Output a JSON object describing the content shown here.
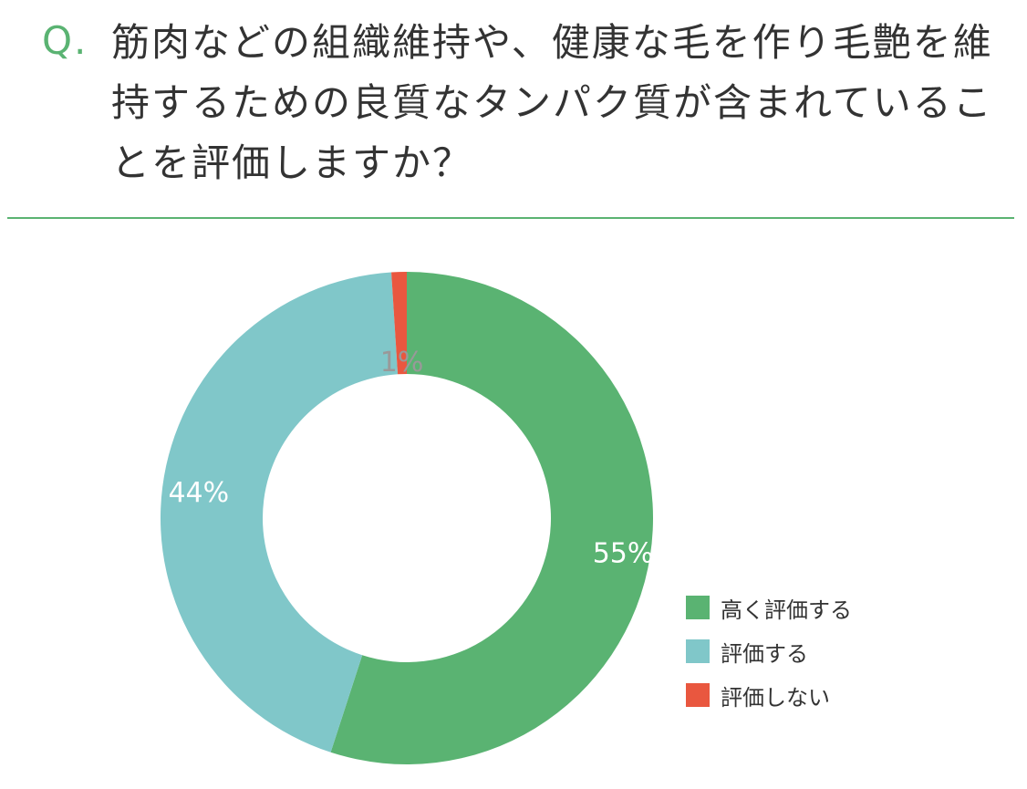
{
  "question": {
    "mark": "Q.",
    "text": "筋肉などの組織維持や、健康な毛を作り毛艶を維持するための良質なタンパク質が含まれていることを評価しますか？"
  },
  "colors": {
    "accent": "#5ab372",
    "divider": "#5ab372"
  },
  "chart_data": {
    "type": "pie",
    "variant": "donut",
    "title": "",
    "slices": [
      {
        "label": "高く評価する",
        "value": 55,
        "display": "55%",
        "color": "#5ab372",
        "label_color": "#ffffff"
      },
      {
        "label": "評価する",
        "value": 44,
        "display": "44%",
        "color": "#80c7c9",
        "label_color": "#ffffff"
      },
      {
        "label": "評価しない",
        "value": 1,
        "display": "1%",
        "color": "#e9573f",
        "label_color": "#999999"
      }
    ],
    "legend_position": "right-bottom"
  }
}
